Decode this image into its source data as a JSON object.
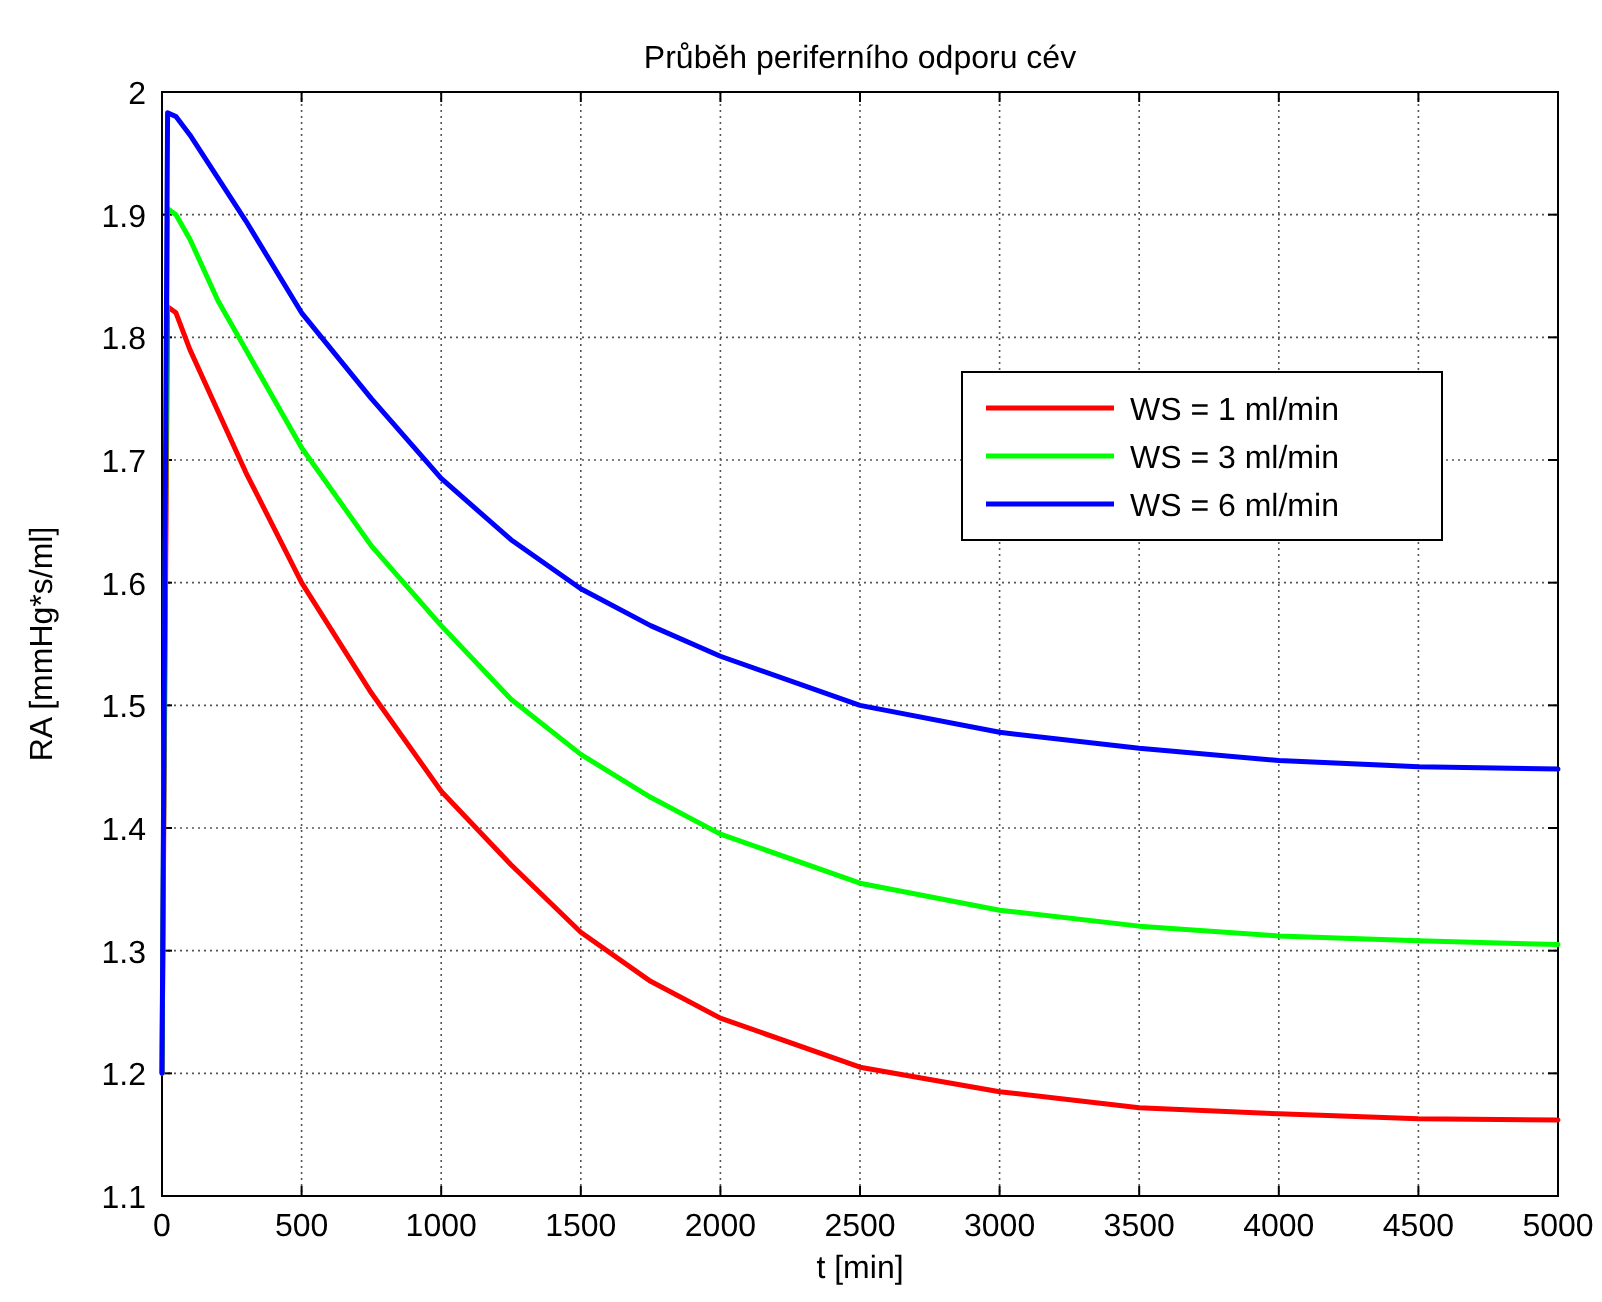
{
  "chart_data": {
    "type": "line",
    "title": "Průběh periferního odporu cév",
    "xlabel": "t [min]",
    "ylabel": "RA [mmHg*s/ml]",
    "xlim": [
      0,
      5000
    ],
    "xticks": [
      0,
      500,
      1000,
      1500,
      2000,
      2500,
      3000,
      3500,
      4000,
      4500,
      5000
    ],
    "ylim": [
      1.1,
      2
    ],
    "yticks": [
      1.1,
      1.2,
      1.3,
      1.4,
      1.5,
      1.6,
      1.7,
      1.8,
      1.9,
      2
    ],
    "x": [
      0,
      20,
      50,
      100,
      200,
      300,
      500,
      750,
      1000,
      1250,
      1500,
      1750,
      2000,
      2500,
      3000,
      3500,
      4000,
      4500,
      5000
    ],
    "series": [
      {
        "name": "WS = 1 ml/min",
        "color": "#ff0000",
        "values": [
          1.2,
          1.825,
          1.82,
          1.79,
          1.74,
          1.69,
          1.6,
          1.51,
          1.43,
          1.37,
          1.315,
          1.275,
          1.245,
          1.205,
          1.185,
          1.172,
          1.167,
          1.163,
          1.162
        ]
      },
      {
        "name": "WS = 3 ml/min",
        "color": "#00ff00",
        "values": [
          1.2,
          1.905,
          1.9,
          1.88,
          1.83,
          1.79,
          1.71,
          1.63,
          1.565,
          1.505,
          1.46,
          1.425,
          1.395,
          1.355,
          1.333,
          1.32,
          1.312,
          1.308,
          1.305
        ]
      },
      {
        "name": "WS = 6 ml/min",
        "color": "#0000ff",
        "values": [
          1.2,
          1.983,
          1.98,
          1.965,
          1.93,
          1.895,
          1.82,
          1.75,
          1.685,
          1.635,
          1.595,
          1.565,
          1.54,
          1.5,
          1.478,
          1.465,
          1.455,
          1.45,
          1.448
        ]
      }
    ],
    "grid": true,
    "legend": "top right",
    "line_style": "solid",
    "marker": "none"
  }
}
